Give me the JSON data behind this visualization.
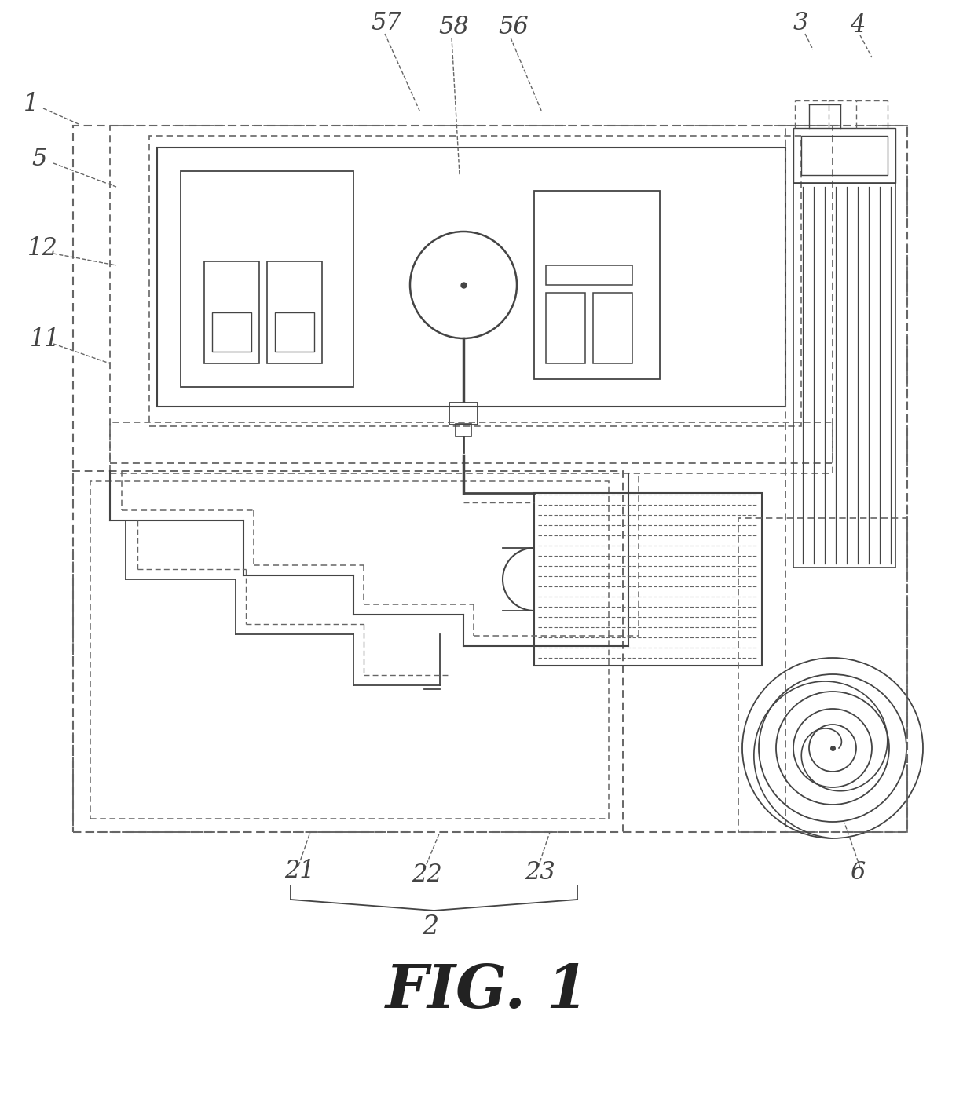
{
  "bg_color": "#ffffff",
  "lc": "#444444",
  "dc": "#666666",
  "title": "FIG. 1",
  "fig_w": 12.4,
  "fig_h": 14.23
}
